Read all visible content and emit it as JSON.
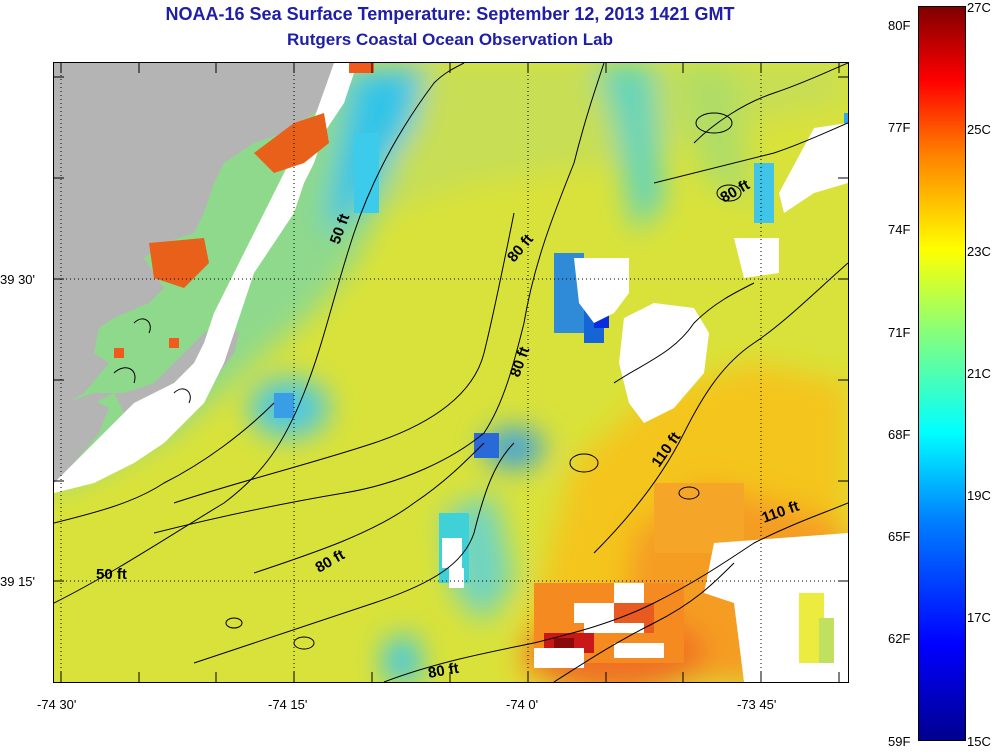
{
  "title": "NOAA-16 Sea Surface Temperature:  September 12, 2013 1421 GMT",
  "subtitle": "Rutgers Coastal Ocean Observation Lab",
  "axes": {
    "x_ticks": [
      "-74 30'",
      "-74 15'",
      "-74 0'",
      "-73 45'"
    ],
    "y_ticks": [
      "39 30'",
      "39 15'"
    ]
  },
  "colorbar": {
    "fahrenheit": [
      "80F",
      "77F",
      "74F",
      "71F",
      "68F",
      "65F",
      "62F",
      "59F"
    ],
    "celsius": [
      "27C",
      "25C",
      "23C",
      "21C",
      "19C",
      "17C",
      "15C"
    ]
  },
  "contour_labels": [
    "50 ft",
    "50 ft",
    "80 ft",
    "80 ft",
    "80 ft",
    "80 ft",
    "80 ft",
    "110 ft",
    "110 ft"
  ],
  "colors": {
    "title": "#1e1ea8",
    "land": "#b4b4b4",
    "cloud": "#ffffff",
    "sst_warm": "#f7a21b",
    "sst_mid": "#d9e23a",
    "sst_cool": "#27c8e6"
  }
}
